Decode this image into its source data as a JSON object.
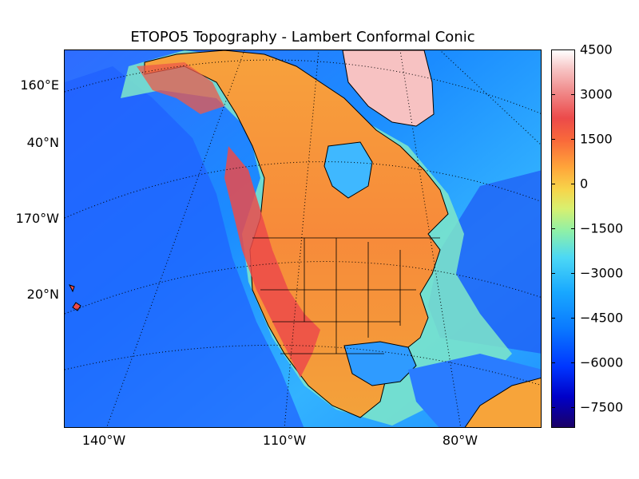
{
  "title": "ETOPO5 Topography - Lambert Conformal Conic",
  "left_labels": [
    "160°E",
    "40°N",
    "170°W",
    "20°N"
  ],
  "bottom_labels": [
    "140°W",
    "110°W",
    "80°W"
  ],
  "colorbar": {
    "ticks": [
      "4500",
      "3000",
      "1500",
      "0",
      "−1500",
      "−3000",
      "−4500",
      "−6000",
      "−7500"
    ],
    "min": -8400,
    "max": 4500,
    "colormap": "jet"
  },
  "map": {
    "projection": "Lambert Conformal Conic",
    "dataset": "ETOPO5",
    "ocean_color": "#2f8fff",
    "land_color": "#f7883a",
    "highland_color": "#ec4a4a",
    "ice_color": "#f9c6c6"
  }
}
